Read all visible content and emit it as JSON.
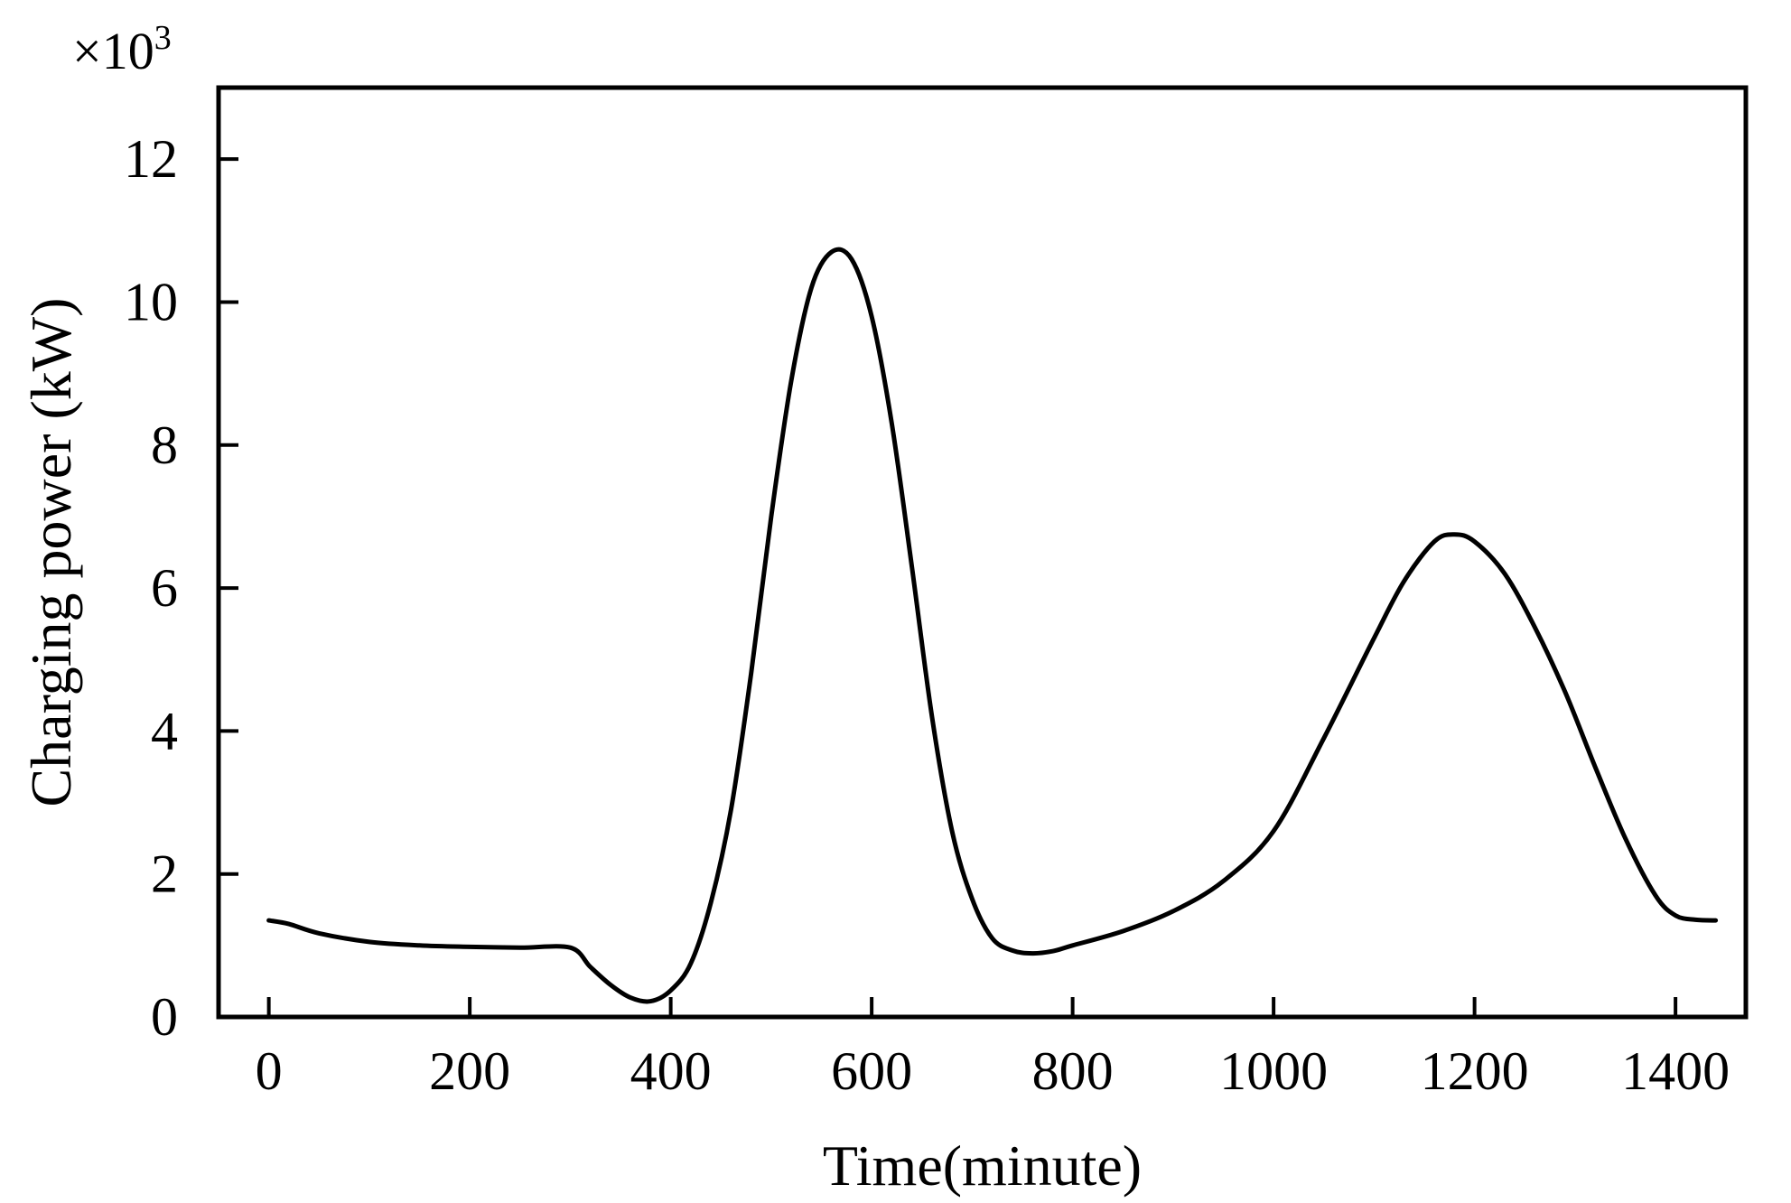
{
  "chart_data": {
    "type": "line",
    "title": "",
    "xlabel": "Time(minute)",
    "ylabel": "Charging power (kW)",
    "y_multiplier": {
      "base": "×10",
      "exponent": "3"
    },
    "xlim": [
      -50,
      1470
    ],
    "ylim": [
      0,
      13
    ],
    "x_ticks": [
      0,
      200,
      400,
      600,
      800,
      1000,
      1200,
      1400
    ],
    "x_tick_labels": [
      "0",
      "200",
      "400",
      "600",
      "800",
      "1000",
      "1200",
      "1400"
    ],
    "y_ticks": [
      0,
      2,
      4,
      6,
      8,
      10,
      12
    ],
    "y_tick_labels": [
      "0",
      "2",
      "4",
      "6",
      "8",
      "10",
      "12"
    ],
    "grid": false,
    "legend": "none",
    "line_color": "#000000",
    "series": [
      {
        "x": [
          0,
          20,
          50,
          100,
          150,
          200,
          250,
          300,
          320,
          340,
          360,
          380,
          400,
          420,
          440,
          460,
          480,
          500,
          520,
          540,
          560,
          580,
          600,
          620,
          640,
          660,
          680,
          700,
          720,
          740,
          760,
          780,
          800,
          850,
          900,
          950,
          1000,
          1050,
          1100,
          1130,
          1160,
          1180,
          1200,
          1230,
          1260,
          1290,
          1320,
          1350,
          1380,
          1400,
          1420,
          1440
        ],
        "y": [
          1.35,
          1.3,
          1.17,
          1.05,
          1.0,
          0.98,
          0.97,
          0.97,
          0.7,
          0.45,
          0.27,
          0.22,
          0.37,
          0.75,
          1.6,
          2.9,
          4.8,
          7.0,
          8.9,
          10.2,
          10.7,
          10.6,
          9.8,
          8.3,
          6.3,
          4.2,
          2.6,
          1.65,
          1.1,
          0.93,
          0.89,
          0.92,
          1.0,
          1.2,
          1.48,
          1.9,
          2.6,
          3.9,
          5.3,
          6.1,
          6.65,
          6.75,
          6.65,
          6.2,
          5.45,
          4.55,
          3.5,
          2.5,
          1.7,
          1.42,
          1.36,
          1.35
        ]
      }
    ]
  }
}
